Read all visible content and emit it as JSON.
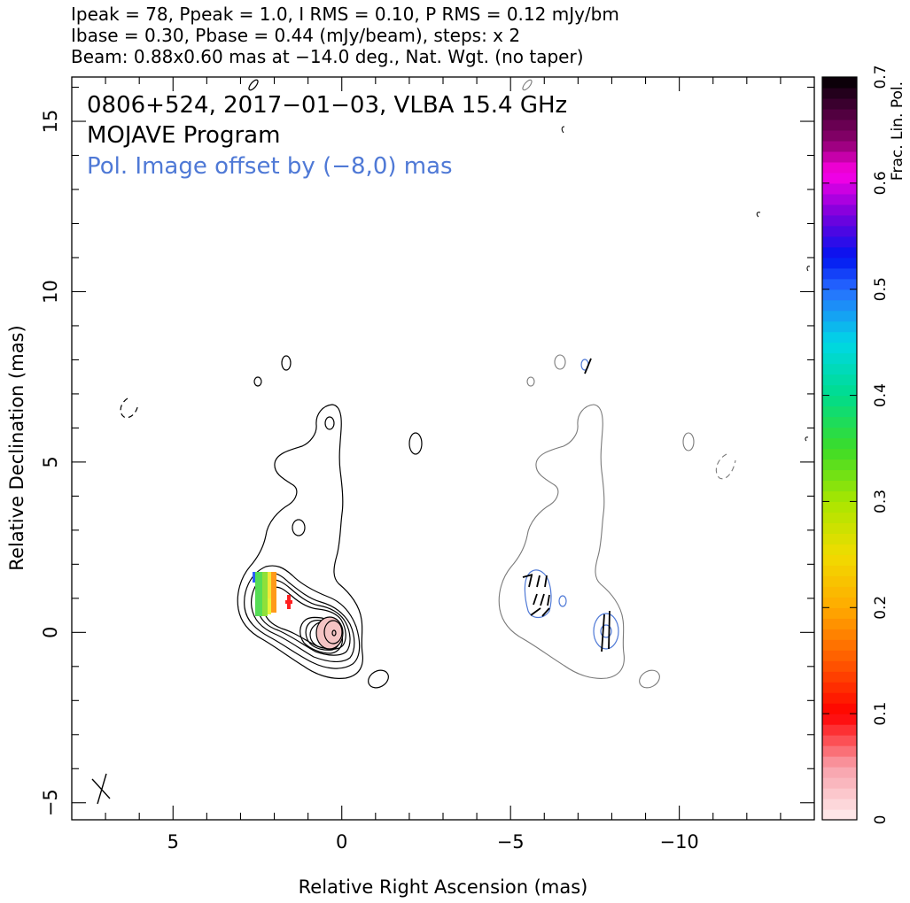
{
  "header": {
    "line1": "Ipeak = 78, Ppeak = 1.0, I RMS = 0.10, P RMS = 0.12 mJy/bm",
    "line2": "Ibase = 0.30, Pbase = 0.44 (mJy/beam), steps: x 2",
    "line3": "Beam: 0.88x0.60 mas at −14.0 deg., Nat. Wgt. (no taper)"
  },
  "chart_data": {
    "type": "heatmap",
    "source_line": "0806+524, 2017−01−03, VLBA 15.4 GHz",
    "program_line": "MOJAVE Program",
    "offset_note": "Pol. Image offset by (−8,0) mas",
    "xlabel": "Relative Right Ascension (mas)",
    "ylabel": "Relative Declination (mas)",
    "xlim": [
      8,
      -14
    ],
    "ylim": [
      -5.5,
      16.3
    ],
    "xticks": [
      5,
      0,
      -5,
      -10
    ],
    "xtick_labels": [
      "5",
      "0",
      "−5",
      "−10"
    ],
    "yticks": [
      -5,
      0,
      5,
      10,
      15
    ],
    "ytick_labels": [
      "−5",
      "0",
      "5",
      "10",
      "15"
    ],
    "polarization_offset_mas": [
      -8,
      0
    ],
    "beam": {
      "major_mas": 0.88,
      "minor_mas": 0.6,
      "pa_deg": -14.0
    },
    "colorbar": {
      "label": "Frac. Lin. Pol.",
      "range": [
        0,
        0.7
      ],
      "ticks": [
        0,
        0.1,
        0.2,
        0.3,
        0.4,
        0.5,
        0.6,
        0.7
      ],
      "tick_labels": [
        "0",
        "0.1",
        "0.2",
        "0.3",
        "0.4",
        "0.5",
        "0.6",
        "0.7"
      ]
    },
    "colors": {
      "stokes_i_contour": "#000000",
      "pol_total_contour": "#7a7a7a",
      "pol_contour": "#4f79d6",
      "evpa_ticks": "#000000"
    }
  }
}
